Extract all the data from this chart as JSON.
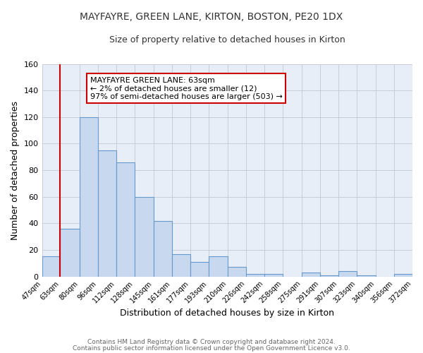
{
  "title": "MAYFAYRE, GREEN LANE, KIRTON, BOSTON, PE20 1DX",
  "subtitle": "Size of property relative to detached houses in Kirton",
  "xlabel": "Distribution of detached houses by size in Kirton",
  "ylabel": "Number of detached properties",
  "bar_edges": [
    47,
    63,
    80,
    96,
    112,
    128,
    145,
    161,
    177,
    193,
    210,
    226,
    242,
    258,
    275,
    291,
    307,
    323,
    340,
    356,
    372
  ],
  "bar_heights": [
    15,
    36,
    120,
    95,
    86,
    60,
    42,
    17,
    11,
    15,
    7,
    2,
    2,
    0,
    3,
    1,
    4,
    1,
    0,
    2
  ],
  "tick_labels": [
    "47sqm",
    "63sqm",
    "80sqm",
    "96sqm",
    "112sqm",
    "128sqm",
    "145sqm",
    "161sqm",
    "177sqm",
    "193sqm",
    "210sqm",
    "226sqm",
    "242sqm",
    "258sqm",
    "275sqm",
    "291sqm",
    "307sqm",
    "323sqm",
    "340sqm",
    "356sqm",
    "372sqm"
  ],
  "bar_color": "#c8d8ee",
  "bar_edge_color": "#6699cc",
  "property_line_x": 63,
  "property_line_color": "#cc0000",
  "annotation_title": "MAYFAYRE GREEN LANE: 63sqm",
  "annotation_line1": "← 2% of detached houses are smaller (12)",
  "annotation_line2": "97% of semi-detached houses are larger (503) →",
  "annotation_box_facecolor": "#ffffff",
  "annotation_box_edgecolor": "#cc0000",
  "ylim": [
    0,
    160
  ],
  "yticks": [
    0,
    20,
    40,
    60,
    80,
    100,
    120,
    140,
    160
  ],
  "footer1": "Contains HM Land Registry data © Crown copyright and database right 2024.",
  "footer2": "Contains public sector information licensed under the Open Government Licence v3.0.",
  "bg_color": "#ffffff",
  "plot_bg_color": "#e8eef8",
  "grid_color": "#c8ccd8",
  "title_fontsize": 10,
  "subtitle_fontsize": 9,
  "xlabel_fontsize": 9,
  "ylabel_fontsize": 9
}
